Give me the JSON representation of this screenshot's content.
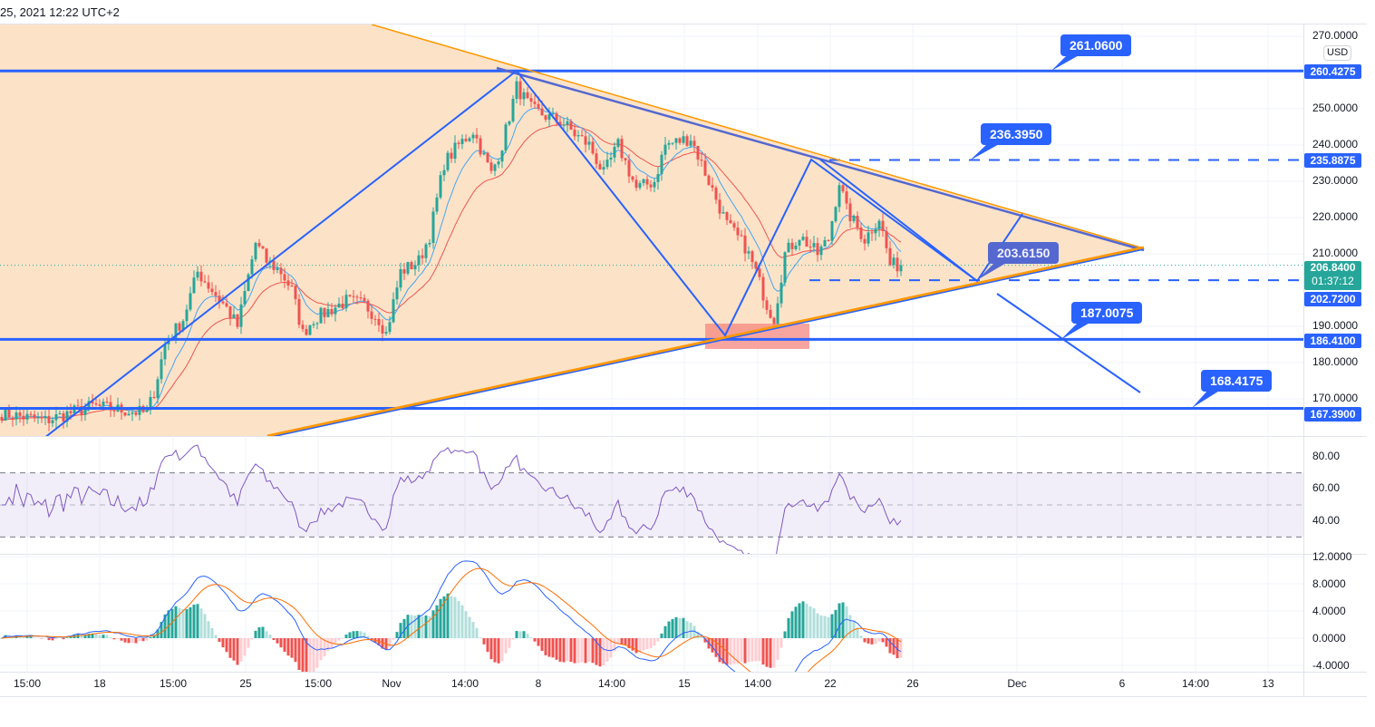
{
  "header": {
    "datetime_text": "25, 2021 12:22 UTC+2"
  },
  "currency_badge": "USD",
  "colors": {
    "up": "#26a69a",
    "down": "#ef5350",
    "drawing_blue": "#2962ff",
    "triangle_orange": "#ff9800",
    "triangle_fill": "#fce3c8",
    "ema_fast": "#42a5f5",
    "ema_slow": "#ef5350",
    "rsi": "#7e57c2",
    "macd": "#2962ff",
    "signal": "#ff6d00",
    "zone_red": "#f7877f"
  },
  "chart_data": {
    "type": "candlestick",
    "price_axis": {
      "range": [
        164,
        276
      ],
      "ticks": [
        "270.0000",
        "250.0000",
        "240.0000",
        "230.0000",
        "220.0000",
        "210.0000",
        "190.0000",
        "180.0000",
        "170.0000"
      ],
      "tick_values": [
        270,
        250,
        240,
        230,
        220,
        210,
        190,
        180,
        170
      ]
    },
    "time_axis_ticks": [
      "15:00",
      "18",
      "15:00",
      "25",
      "15:00",
      "Nov",
      "14:00",
      "8",
      "14:00",
      "15",
      "14:00",
      "22",
      "26",
      "Dec",
      "6",
      "14:00",
      "13"
    ],
    "close_keypoints": [
      [
        0,
        166
      ],
      [
        12,
        164
      ],
      [
        25,
        168
      ],
      [
        40,
        166
      ],
      [
        42,
        172
      ],
      [
        45,
        185
      ],
      [
        50,
        192
      ],
      [
        54,
        205
      ],
      [
        58,
        200
      ],
      [
        62,
        195
      ],
      [
        65,
        190
      ],
      [
        70,
        213
      ],
      [
        73,
        208
      ],
      [
        77,
        205
      ],
      [
        80,
        200
      ],
      [
        83,
        188
      ],
      [
        86,
        192
      ],
      [
        95,
        197
      ],
      [
        100,
        196
      ],
      [
        104,
        192
      ],
      [
        106,
        188
      ],
      [
        110,
        205
      ],
      [
        115,
        208
      ],
      [
        118,
        215
      ],
      [
        122,
        235
      ],
      [
        126,
        240
      ],
      [
        130,
        244
      ],
      [
        135,
        232
      ],
      [
        138,
        240
      ],
      [
        142,
        256
      ],
      [
        146,
        250
      ],
      [
        150,
        248
      ],
      [
        155,
        246
      ],
      [
        158,
        243
      ],
      [
        162,
        240
      ],
      [
        166,
        232
      ],
      [
        170,
        240
      ],
      [
        175,
        228
      ],
      [
        180,
        230
      ],
      [
        183,
        240
      ],
      [
        190,
        242
      ],
      [
        195,
        230
      ],
      [
        200,
        218
      ],
      [
        205,
        212
      ],
      [
        208,
        205
      ],
      [
        211,
        196
      ],
      [
        213,
        192
      ],
      [
        216,
        210
      ],
      [
        220,
        215
      ],
      [
        225,
        210
      ],
      [
        228,
        214
      ],
      [
        231,
        230
      ],
      [
        233,
        222
      ],
      [
        238,
        214
      ],
      [
        242,
        220
      ],
      [
        245,
        207
      ],
      [
        248,
        206.84
      ]
    ],
    "last_price": "206.8400",
    "countdown": "01:37:12",
    "horizontal_levels": [
      {
        "value": 260.4275,
        "label": "260.4275",
        "style": "solid"
      },
      {
        "value": 235.8875,
        "label": "235.8875",
        "style": "dashed"
      },
      {
        "value": 202.72,
        "label": "202.7200",
        "style": "dashed"
      },
      {
        "value": 186.41,
        "label": "186.4100",
        "style": "solid"
      },
      {
        "value": 167.39,
        "label": "167.3900",
        "style": "solid"
      }
    ],
    "callouts": [
      "261.0600",
      "236.3950",
      "203.6150",
      "187.0075",
      "168.4175"
    ],
    "rsi": {
      "ticks": [
        "80.00",
        "60.00",
        "40.00"
      ],
      "tick_values": [
        80,
        60,
        40
      ],
      "bands": [
        70,
        50,
        30
      ],
      "period": 14
    },
    "macd": {
      "ticks": [
        "12.0000",
        "8.0000",
        "4.0000",
        "0.0000",
        "-4.0000"
      ],
      "tick_values": [
        12,
        8,
        4,
        0,
        -4
      ],
      "fast": 12,
      "slow": 26,
      "signal": 9
    },
    "ema_periods": [
      9,
      21
    ]
  }
}
